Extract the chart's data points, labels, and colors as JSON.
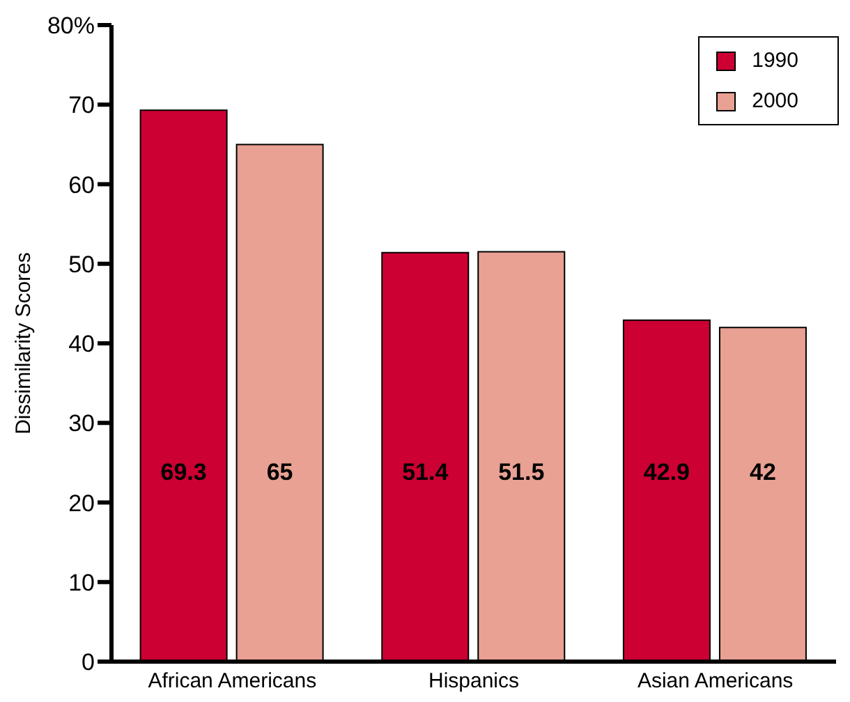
{
  "chart_data": {
    "type": "bar",
    "ylabel": "Dissimilarity Scores",
    "categories": [
      "African Americans",
      "Hispanics",
      "Asian Americans"
    ],
    "series": [
      {
        "name": "1990",
        "color": "#cc0033",
        "values": [
          69.3,
          51.4,
          42.9
        ]
      },
      {
        "name": "2000",
        "color": "#e8a193",
        "values": [
          65,
          51.5,
          42
        ]
      }
    ],
    "data_labels": true,
    "ylim": [
      0,
      80
    ],
    "yticks": [
      0,
      10,
      20,
      30,
      40,
      50,
      60,
      70,
      {
        "value": 80,
        "label": "80%"
      }
    ],
    "grid": false,
    "legend": "top right"
  }
}
